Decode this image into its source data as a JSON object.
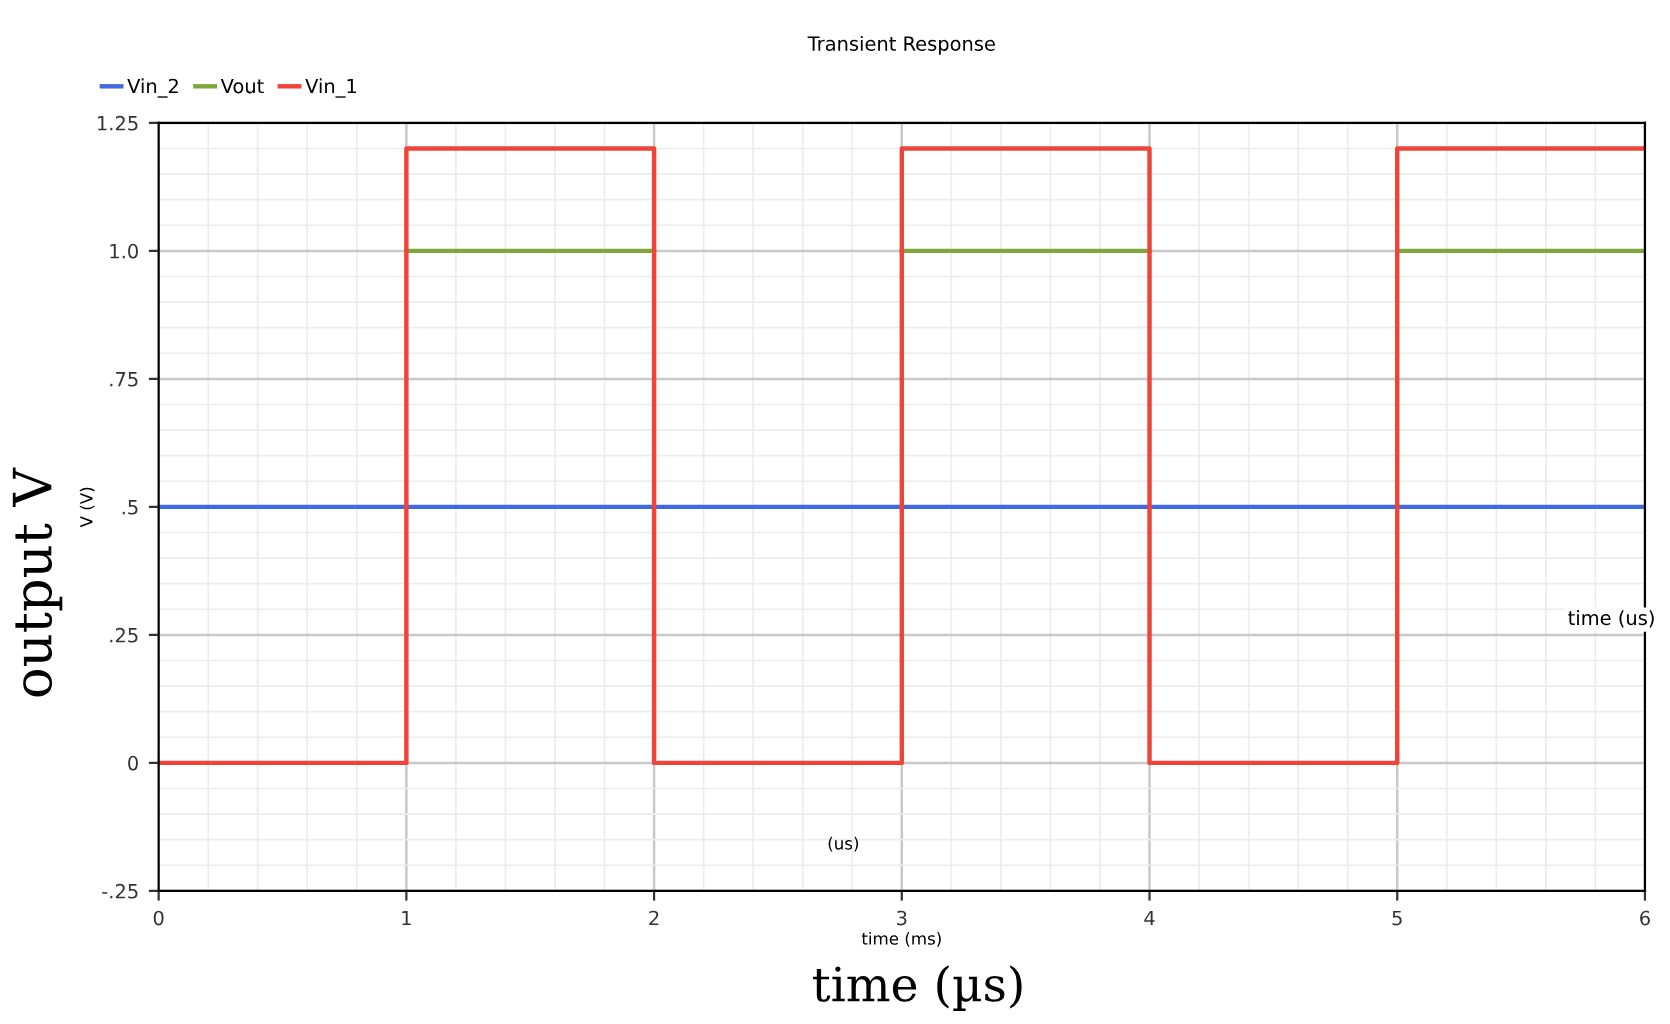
{
  "chart_data": {
    "type": "line",
    "title": "Transient Response",
    "xlabel": "time (ms)",
    "ylabel": "V (V)",
    "annotations": [
      "output V",
      "time (µs)",
      "(us)",
      "time (us)"
    ],
    "series": [
      {
        "name": "Vin_2",
        "color": "#4169e1",
        "x": [
          0,
          6
        ],
        "values": [
          0.5,
          0.5
        ]
      },
      {
        "name": "Vout",
        "color": "#7fa83c",
        "x": [
          1,
          2,
          2.5,
          3,
          4,
          4.5,
          5,
          6
        ],
        "values": [
          1.0,
          1.0,
          null,
          1.0,
          1.0,
          null,
          1.0,
          1.0
        ]
      },
      {
        "name": "Vin_1",
        "color": "#f0443a",
        "x": [
          0,
          1,
          1,
          2,
          2,
          3,
          3,
          4,
          4,
          5,
          5,
          6
        ],
        "values": [
          0,
          0,
          1.2,
          1.2,
          0,
          0,
          1.2,
          1.2,
          0,
          0,
          1.2,
          1.2
        ]
      }
    ],
    "xlim": [
      0,
      6
    ],
    "xticks": [
      0,
      1,
      2,
      3,
      4,
      5,
      6
    ],
    "ylim": [
      -0.25,
      1.25
    ],
    "yticks": [
      {
        "value": -0.25,
        "label": "-.25"
      },
      0,
      {
        "value": 0.25,
        "label": ".25"
      },
      {
        "value": 0.5,
        "label": ".5"
      },
      {
        "value": 0.75,
        "label": ".75"
      },
      {
        "value": 1.0,
        "label": "1.0"
      },
      {
        "value": 1.25,
        "label": "1.25"
      }
    ],
    "grid": true,
    "legend": "top left",
    "marker": "none",
    "line_style": "solid"
  }
}
